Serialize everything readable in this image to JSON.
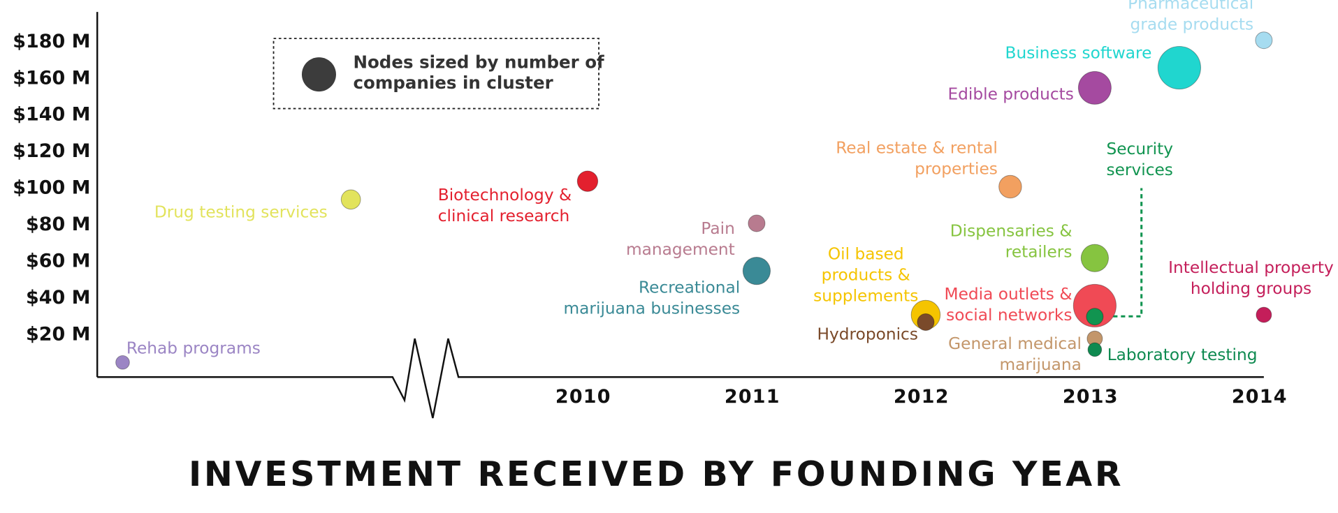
{
  "chart_data": {
    "type": "scatter",
    "title": "INVESTMENT RECEIVED BY FOUNDING YEAR",
    "legend": [
      "Nodes sized by number of",
      "companies in cluster"
    ],
    "xlim": [
      2007.1,
      2014.0
    ],
    "ylim": [
      -3,
      196
    ],
    "xticks": [
      2010,
      2011,
      2012,
      2013,
      2014
    ],
    "yticks": [
      {
        "value": 20,
        "label": "$20 M"
      },
      {
        "value": 40,
        "label": "$40 M"
      },
      {
        "value": 60,
        "label": "$60 M"
      },
      {
        "value": 80,
        "label": "$80 M"
      },
      {
        "value": 100,
        "label": "$100 M"
      },
      {
        "value": 120,
        "label": "$120 M"
      },
      {
        "value": 140,
        "label": "$140 M"
      },
      {
        "value": 160,
        "label": "$160 M"
      },
      {
        "value": 180,
        "label": "$180 M"
      }
    ],
    "points": [
      {
        "label": [
          "Rehab programs"
        ],
        "x": 2007.25,
        "y": 5,
        "size": 4,
        "color": "#9b85c4"
      },
      {
        "label": [
          "Drug testing services"
        ],
        "x": 2008.6,
        "y": 94,
        "size": 8,
        "color": "#e2e35c"
      },
      {
        "label": [
          "Biotechnology &",
          "clinical research"
        ],
        "x": 2010.0,
        "y": 104,
        "size": 9,
        "color": "#e3202e"
      },
      {
        "label": [
          "Pain",
          "management"
        ],
        "x": 2011.0,
        "y": 81,
        "size": 6,
        "color": "#b87b8f"
      },
      {
        "label": [
          "Recreational",
          "marijuana businesses"
        ],
        "x": 2011.0,
        "y": 55,
        "size": 16,
        "color": "#3a8a96"
      },
      {
        "label": [
          "Oil based",
          "products &",
          "supplements"
        ],
        "x": 2012.0,
        "y": 31,
        "size": 18,
        "color": "#f5c400"
      },
      {
        "label": [
          "Hydroponics"
        ],
        "x": 2012.0,
        "y": 27,
        "size": 6,
        "color": "#7a4a2a"
      },
      {
        "label": [
          "Real estate & rental",
          "properties"
        ],
        "x": 2012.5,
        "y": 101,
        "size": 11,
        "color": "#f2a060"
      },
      {
        "label": [
          "Edible products"
        ],
        "x": 2013.0,
        "y": 155,
        "size": 23,
        "color": "#a54aa0"
      },
      {
        "label": [
          "Business software"
        ],
        "x": 2013.5,
        "y": 166,
        "size": 39,
        "color": "#20d6cf"
      },
      {
        "label": [
          "Pharmaceutical",
          "grade products"
        ],
        "x": 2014.0,
        "y": 181,
        "size": 6,
        "color": "#a6dcf0"
      },
      {
        "label": [
          "Intellectual property",
          "holding groups"
        ],
        "x": 2014.0,
        "y": 31,
        "size": 5,
        "color": "#c41e5a"
      },
      {
        "label": [
          "Dispensaries &",
          "retailers"
        ],
        "x": 2013.0,
        "y": 62,
        "size": 16,
        "color": "#86c440"
      },
      {
        "label": [
          "Media outlets &",
          "social networks"
        ],
        "x": 2013.0,
        "y": 36,
        "size": 39,
        "color": "#f04a55"
      },
      {
        "label": [
          "Security",
          "services"
        ],
        "x": 2013.0,
        "y": 30,
        "size": 6,
        "color": "#119450"
      },
      {
        "label": [
          "General medical",
          "marijuana"
        ],
        "x": 2013.0,
        "y": 18,
        "size": 5,
        "color": "#c3966a"
      },
      {
        "label": [
          "Laboratory testing"
        ],
        "x": 2013.0,
        "y": 12,
        "size": 4,
        "color": "#0e8a50"
      }
    ]
  }
}
